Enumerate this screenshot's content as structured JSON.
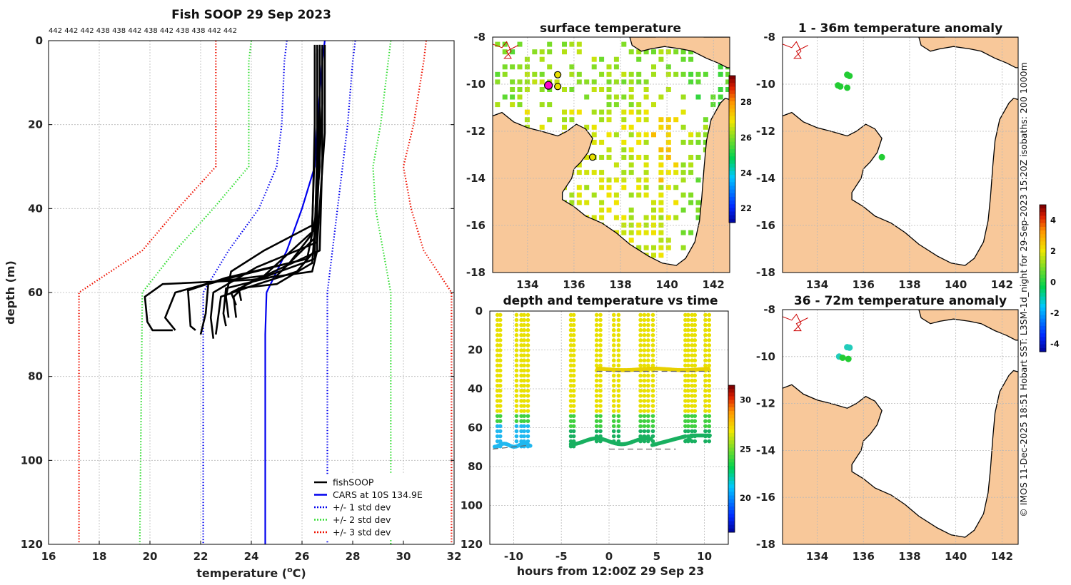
{
  "profile": {
    "title": "Fish SOOP 29 Sep 2023",
    "top_labels": "442 442 442 438 438 442 438 442 438 438 442 442",
    "xlabel_main": "temperature (",
    "xlabel_sup": "o",
    "xlabel_end": "C)",
    "ylabel": "depth (m)",
    "xticks": [
      "16",
      "18",
      "20",
      "22",
      "24",
      "26",
      "28",
      "30",
      "32"
    ],
    "yticks": [
      "0",
      "20",
      "40",
      "60",
      "80",
      "100",
      "120"
    ],
    "legend": [
      {
        "label": "fishSOOP",
        "color": "#000000",
        "style": "solid"
      },
      {
        "label": "CARS at 10S 134.9E",
        "color": "#0000ee",
        "style": "solid"
      },
      {
        "label": "+/- 1 std dev",
        "color": "#0000ee",
        "style": "dotted"
      },
      {
        "label": "+/- 2 std dev",
        "color": "#33dd33",
        "style": "dotted"
      },
      {
        "label": "+/- 3 std dev",
        "color": "#ee1100",
        "style": "dotted"
      }
    ]
  },
  "chart_data": [
    {
      "type": "line",
      "title": "Fish SOOP 29 Sep 2023",
      "xlabel": "temperature (oC)",
      "ylabel": "depth (m)",
      "xlim": [
        16,
        32
      ],
      "ylim": [
        120,
        0
      ],
      "series": [
        {
          "name": "CARS at 10S 134.9E",
          "color": "#0000ee",
          "style": "solid",
          "points": [
            [
              26.9,
              0
            ],
            [
              26.8,
              5
            ],
            [
              26.6,
              20
            ],
            [
              26.5,
              30
            ],
            [
              26.0,
              40
            ],
            [
              25.4,
              50
            ],
            [
              24.6,
              60
            ],
            [
              24.55,
              70
            ],
            [
              24.55,
              120
            ]
          ]
        },
        {
          "name": "+1 std dev",
          "color": "#0000ee",
          "style": "dotted",
          "points": [
            [
              28.1,
              0
            ],
            [
              28.0,
              5
            ],
            [
              27.8,
              20
            ],
            [
              27.6,
              30
            ],
            [
              27.4,
              40
            ],
            [
              27.2,
              50
            ],
            [
              27.0,
              60
            ],
            [
              27.0,
              120
            ]
          ]
        },
        {
          "name": "-1 std dev",
          "color": "#0000ee",
          "style": "dotted",
          "points": [
            [
              25.4,
              0
            ],
            [
              25.3,
              5
            ],
            [
              25.2,
              20
            ],
            [
              25.0,
              30
            ],
            [
              24.3,
              40
            ],
            [
              23.1,
              50
            ],
            [
              22.1,
              60
            ],
            [
              22.1,
              120
            ]
          ]
        },
        {
          "name": "+2 std dev",
          "color": "#33dd33",
          "style": "dotted",
          "points": [
            [
              29.5,
              0
            ],
            [
              29.4,
              5
            ],
            [
              29.1,
              20
            ],
            [
              28.8,
              30
            ],
            [
              28.9,
              40
            ],
            [
              29.2,
              50
            ],
            [
              29.5,
              60
            ],
            [
              29.5,
              120
            ]
          ]
        },
        {
          "name": "-2 std dev",
          "color": "#33dd33",
          "style": "dotted",
          "points": [
            [
              24.0,
              0
            ],
            [
              23.9,
              5
            ],
            [
              23.9,
              20
            ],
            [
              23.9,
              30
            ],
            [
              22.5,
              40
            ],
            [
              21.0,
              50
            ],
            [
              19.7,
              60
            ],
            [
              19.6,
              120
            ]
          ]
        },
        {
          "name": "+3 std dev",
          "color": "#ee1100",
          "style": "dotted",
          "points": [
            [
              30.9,
              0
            ],
            [
              30.8,
              5
            ],
            [
              30.4,
              20
            ],
            [
              30.0,
              30
            ],
            [
              30.3,
              40
            ],
            [
              30.8,
              50
            ],
            [
              31.9,
              60
            ],
            [
              31.9,
              120
            ]
          ]
        },
        {
          "name": "-3 std dev",
          "color": "#ee1100",
          "style": "dotted",
          "points": [
            [
              22.6,
              0
            ],
            [
              22.6,
              5
            ],
            [
              22.6,
              20
            ],
            [
              22.6,
              30
            ],
            [
              21.1,
              40
            ],
            [
              19.7,
              50
            ],
            [
              17.2,
              60
            ],
            [
              17.2,
              120
            ]
          ]
        },
        {
          "name": "fishSOOP",
          "color": "#000000",
          "style": "solid",
          "profiles": [
            [
              [
                26.6,
                1
              ],
              [
                26.6,
                12
              ],
              [
                26.6,
                28
              ],
              [
                26.6,
                50
              ],
              [
                26.4,
                55
              ],
              [
                24,
                57
              ],
              [
                20.5,
                58
              ],
              [
                19.8,
                61
              ],
              [
                19.9,
                67
              ],
              [
                20.1,
                69
              ],
              [
                20.9,
                69
              ]
            ],
            [
              [
                26.7,
                1
              ],
              [
                26.7,
                15
              ],
              [
                26.5,
                45
              ],
              [
                24.5,
                56
              ],
              [
                22.5,
                57.5
              ],
              [
                21,
                60
              ],
              [
                20.6,
                66
              ],
              [
                21.0,
                69
              ]
            ],
            [
              [
                26.8,
                1
              ],
              [
                26.8,
                15
              ],
              [
                26.6,
                40
              ],
              [
                26.2,
                52
              ],
              [
                23,
                56.5
              ],
              [
                21.5,
                59.5
              ],
              [
                21.6,
                68
              ],
              [
                21.8,
                69
              ]
            ],
            [
              [
                26.5,
                1
              ],
              [
                26.5,
                20
              ],
              [
                26.4,
                46
              ],
              [
                25.5,
                53
              ],
              [
                23.5,
                56
              ],
              [
                22.3,
                58
              ],
              [
                22.2,
                65
              ],
              [
                22.0,
                70
              ]
            ],
            [
              [
                26.9,
                1
              ],
              [
                26.9,
                22
              ],
              [
                26.6,
                48
              ],
              [
                24.2,
                54
              ],
              [
                22.5,
                60
              ],
              [
                22.4,
                66
              ],
              [
                22.5,
                71
              ]
            ],
            [
              [
                26.6,
                2
              ],
              [
                26.6,
                24
              ],
              [
                26.5,
                50
              ],
              [
                25.8,
                55
              ],
              [
                24,
                58.5
              ],
              [
                22.8,
                61
              ],
              [
                22.6,
                70
              ]
            ],
            [
              [
                26.7,
                2
              ],
              [
                26.7,
                25
              ],
              [
                26.5,
                47
              ],
              [
                25,
                56
              ],
              [
                23,
                59
              ],
              [
                22.9,
                65
              ],
              [
                23.0,
                68
              ]
            ],
            [
              [
                26.5,
                3
              ],
              [
                26.5,
                26
              ],
              [
                26.4,
                44
              ],
              [
                24.5,
                50
              ],
              [
                23.2,
                55
              ],
              [
                23.0,
                61
              ],
              [
                23.1,
                66
              ]
            ],
            [
              [
                26.8,
                2
              ],
              [
                26.8,
                28
              ],
              [
                26.7,
                50
              ],
              [
                23.8,
                58
              ],
              [
                23.3,
                61
              ],
              [
                23.4,
                66
              ]
            ],
            [
              [
                26.6,
                2
              ],
              [
                26.6,
                29
              ],
              [
                26.5,
                52
              ],
              [
                24.2,
                57
              ],
              [
                23.2,
                60
              ],
              [
                23.4,
                63
              ]
            ],
            [
              [
                26.7,
                1
              ],
              [
                26.7,
                30
              ],
              [
                26.4,
                53
              ],
              [
                25,
                58
              ],
              [
                23.5,
                59
              ],
              [
                23.6,
                62
              ]
            ]
          ]
        }
      ]
    },
    {
      "type": "heatmap",
      "title": "surface temperature",
      "xlim": [
        132.5,
        142.7
      ],
      "ylim": [
        -18,
        -8
      ],
      "xticks": [
        "134",
        "136",
        "138",
        "140",
        "142"
      ],
      "yticks": [
        "-8",
        "-10",
        "-12",
        "-14",
        "-16",
        "-18"
      ],
      "colorbar_ticks": [
        "28",
        "26",
        "24",
        "22"
      ],
      "colorbar_range": [
        21.2,
        29.5
      ],
      "stations": [
        [
          135.3,
          -9.6
        ],
        [
          135.3,
          -10.1
        ],
        [
          134.9,
          -10.05
        ],
        [
          136.8,
          -13.1
        ]
      ]
    },
    {
      "type": "scatter",
      "title": "depth and temperature vs time",
      "xlabel": "hours from 12:00Z 29 Sep 23",
      "xlim": [
        -12.5,
        12.5
      ],
      "ylim": [
        120,
        0
      ],
      "xticks": [
        "-10",
        "-5",
        "0",
        "5",
        "10"
      ],
      "yticks": [
        "0",
        "20",
        "40",
        "60",
        "80",
        "100",
        "120"
      ],
      "colorbar_ticks": [
        "30",
        "25",
        "20"
      ],
      "colorbar_range": [
        16.5,
        31.5
      ],
      "tows": [
        [
          -11.7,
          -11.4
        ],
        [
          -9.7,
          -9.2
        ],
        [
          -8.9,
          -8.5
        ],
        [
          -4.0,
          -3.7
        ],
        [
          -1.3,
          -0.9
        ],
        [
          0.5,
          1.0
        ],
        [
          3.3,
          3.7
        ],
        [
          4.1,
          4.6
        ],
        [
          8.0,
          8.3
        ],
        [
          8.7,
          9.0
        ],
        [
          10.1,
          10.5
        ]
      ],
      "bottom_depth_shallow": 30,
      "bottom_depth_deep": 70
    },
    {
      "type": "heatmap",
      "title": "1 - 36m temperature anomaly",
      "xlim": [
        132.5,
        142.7
      ],
      "ylim": [
        -18,
        -8
      ],
      "xticks": [
        "134",
        "136",
        "138",
        "140",
        "142"
      ],
      "yticks": [
        "-8",
        "-10",
        "-12",
        "-14",
        "-16",
        "-18"
      ],
      "points": [
        [
          135.3,
          -9.6
        ],
        [
          135.4,
          -9.65
        ],
        [
          134.9,
          -10.05
        ],
        [
          135.0,
          -10.1
        ],
        [
          135.3,
          -10.15
        ],
        [
          136.8,
          -13.1
        ]
      ]
    },
    {
      "type": "heatmap",
      "title": "36 - 72m temperature anomaly",
      "xlim": [
        132.5,
        142.7
      ],
      "ylim": [
        -18,
        -8
      ],
      "xticks": [
        "134",
        "136",
        "138",
        "140",
        "142"
      ],
      "yticks": [
        "-8",
        "-10",
        "-12",
        "-14",
        "-16",
        "-18"
      ],
      "points": [
        [
          135.3,
          -9.6
        ],
        [
          135.4,
          -9.62
        ],
        [
          134.95,
          -10.0
        ],
        [
          135.1,
          -10.05
        ],
        [
          135.35,
          -10.1
        ]
      ],
      "colorbar_ticks": [
        "4",
        "2",
        "0",
        "-2",
        "-4"
      ],
      "colorbar_range": [
        -4.5,
        5.0
      ]
    }
  ],
  "maps": {
    "sst_title": "surface temperature",
    "timeseries_title": "depth and temperature vs time",
    "timeseries_xlabel": "hours from 12:00Z 29 Sep 23",
    "anom1_title": "1 - 36m temperature anomaly",
    "anom2_title": "36 - 72m temperature anomaly"
  },
  "credit": "© IMOS 11-Dec-2025 18:51 Hobart SST: L3SM-1d_night for 29-Sep-2023 15:20Z isobaths: 200  1000m",
  "colors": {
    "land": "#f8c89a",
    "coast": "#000000",
    "png_coast": "#cc0000"
  }
}
